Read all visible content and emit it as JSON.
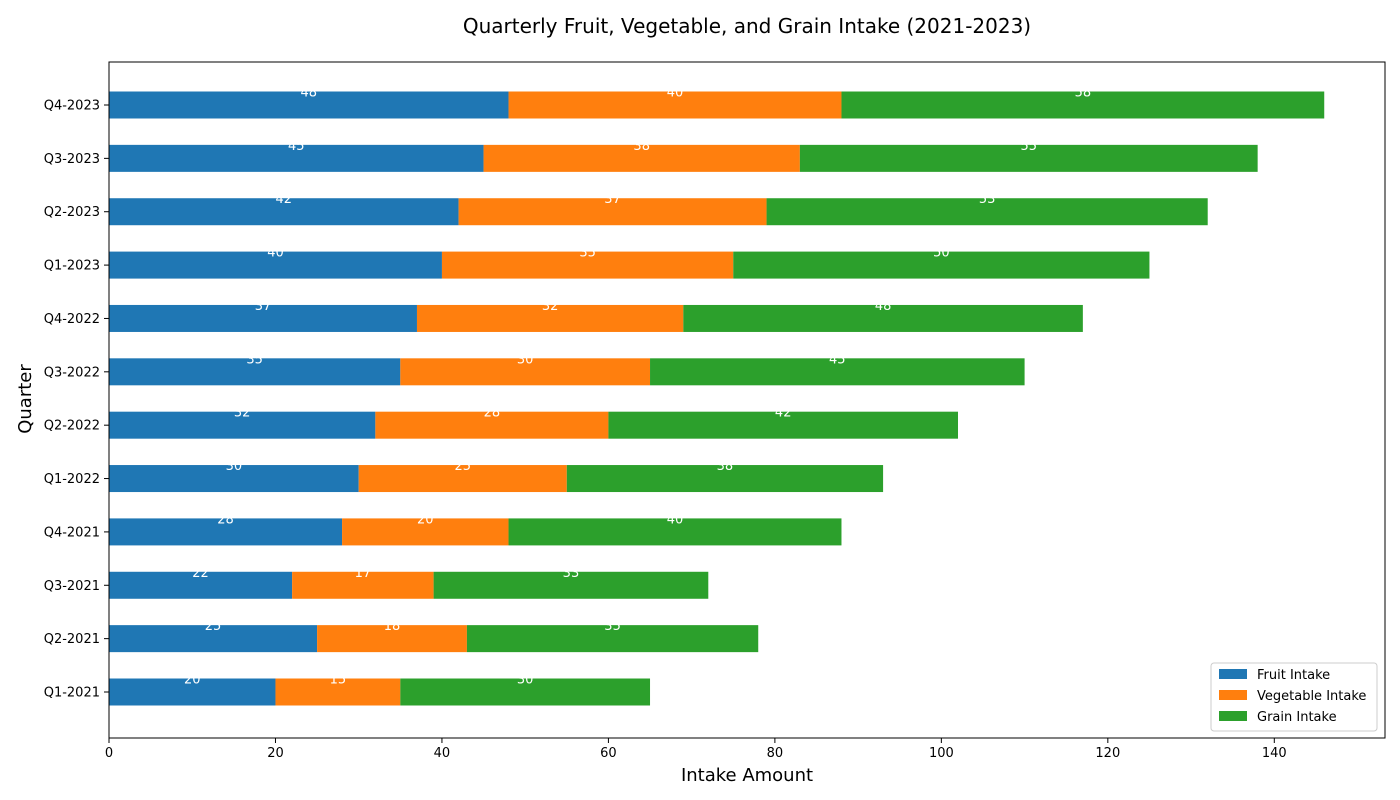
{
  "chart_data": {
    "type": "bar",
    "orientation": "horizontal",
    "stacked": true,
    "title": "Quarterly Fruit, Vegetable, and Grain Intake (2021-2023)",
    "xlabel": "Intake Amount",
    "ylabel": "Quarter",
    "xlim": [
      0,
      153.3
    ],
    "xticks": [
      0,
      20,
      40,
      60,
      80,
      100,
      120,
      140
    ],
    "categories": [
      "Q1-2021",
      "Q2-2021",
      "Q3-2021",
      "Q4-2021",
      "Q1-2022",
      "Q2-2022",
      "Q3-2022",
      "Q4-2022",
      "Q1-2023",
      "Q2-2023",
      "Q3-2023",
      "Q4-2023"
    ],
    "series": [
      {
        "name": "Fruit Intake",
        "color": "#1f77b4",
        "values": [
          20,
          25,
          22,
          28,
          30,
          32,
          35,
          37,
          40,
          42,
          45,
          48
        ]
      },
      {
        "name": "Vegetable Intake",
        "color": "#ff7f0e",
        "values": [
          15,
          18,
          17,
          20,
          25,
          28,
          30,
          32,
          35,
          37,
          38,
          40
        ]
      },
      {
        "name": "Grain Intake",
        "color": "#2ca02c",
        "values": [
          30,
          35,
          33,
          40,
          38,
          42,
          45,
          48,
          50,
          53,
          55,
          58
        ]
      }
    ],
    "grid": false,
    "legend_position": "bottom-right"
  }
}
